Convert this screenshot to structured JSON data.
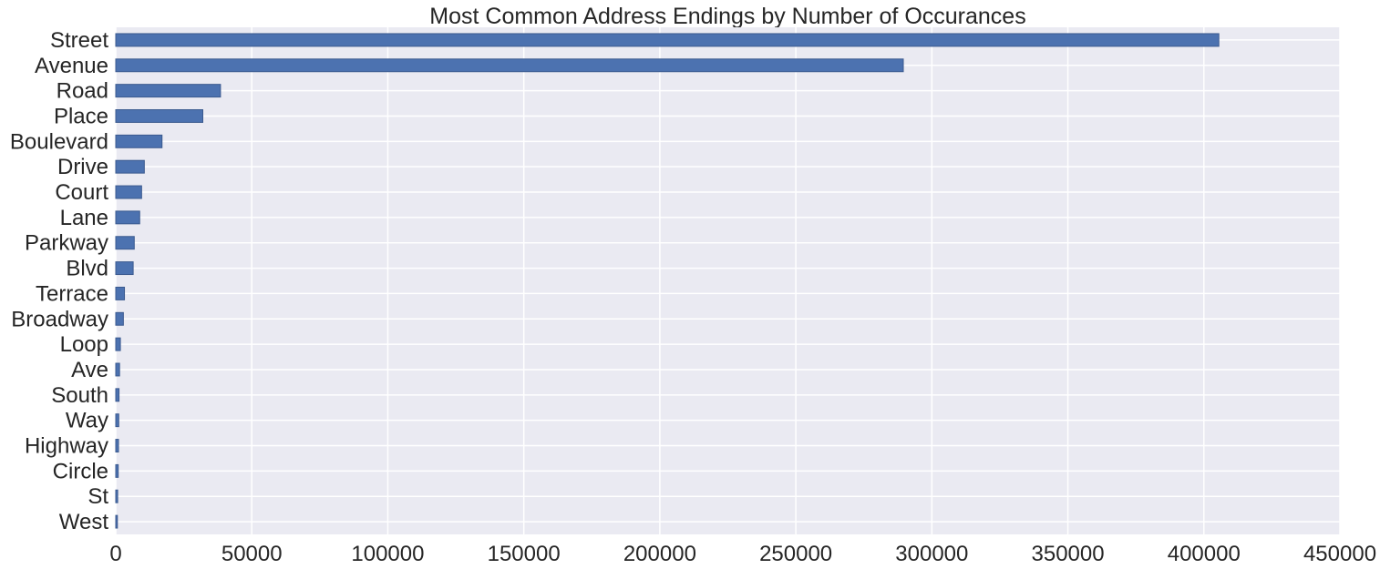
{
  "chart_data": {
    "type": "bar",
    "orientation": "horizontal",
    "title": "Most Common Address Endings by Number of Occurances",
    "xlabel": "",
    "ylabel": "",
    "xlim": [
      0,
      450000
    ],
    "x_ticks": [
      "0",
      "50000",
      "100000",
      "150000",
      "200000",
      "250000",
      "300000",
      "350000",
      "400000",
      "450000"
    ],
    "grid": true,
    "legend": "none",
    "categories": [
      "Street",
      "Avenue",
      "Road",
      "Place",
      "Boulevard",
      "Drive",
      "Court",
      "Lane",
      "Parkway",
      "Blvd",
      "Terrace",
      "Broadway",
      "Loop",
      "Ave",
      "South",
      "Way",
      "Highway",
      "Circle",
      "St",
      "West"
    ],
    "values": [
      405500,
      289500,
      38500,
      32000,
      17000,
      10500,
      9500,
      8800,
      6800,
      6400,
      3200,
      2800,
      1700,
      1400,
      1200,
      1100,
      1000,
      900,
      700,
      600
    ],
    "bar_color": "#4c72b0",
    "background_color": "#eaeaf2",
    "grid_color": "#ffffff"
  }
}
